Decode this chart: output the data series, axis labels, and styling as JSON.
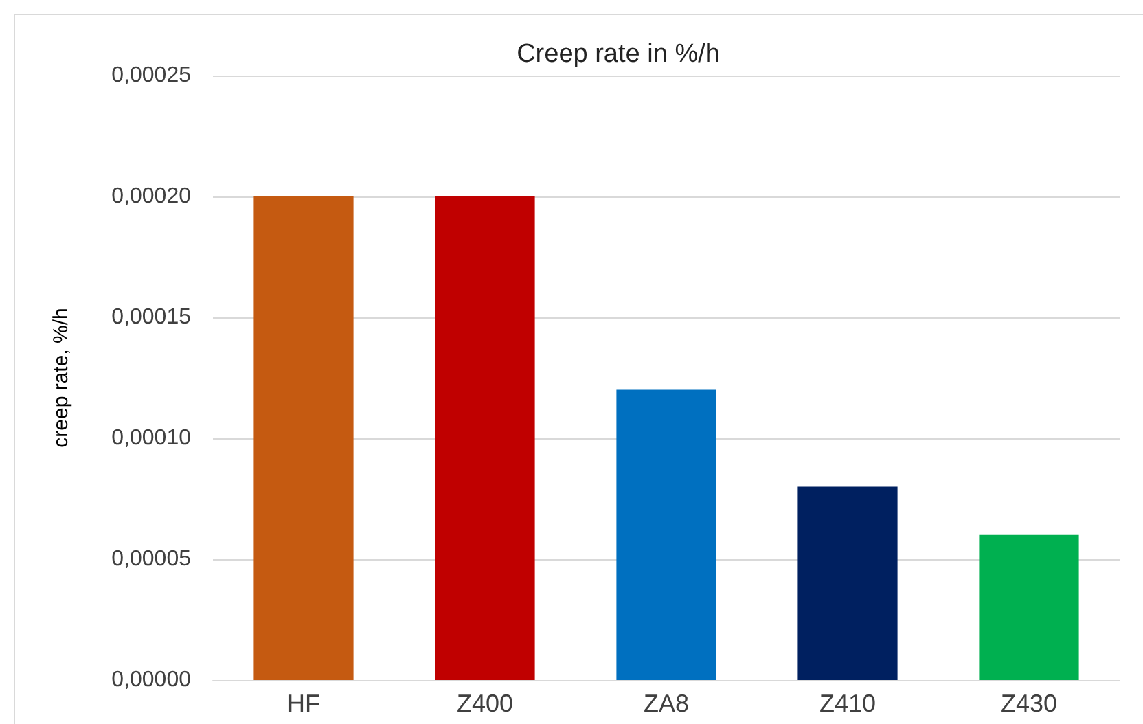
{
  "chart_data": {
    "type": "bar",
    "title": "Creep rate in %/h",
    "ylabel": "creep rate, %/h",
    "categories": [
      "HF",
      "Z400",
      "ZA8",
      "Z410",
      "Z430"
    ],
    "values": [
      0.0002,
      0.0002,
      0.00012,
      8e-05,
      6e-05
    ],
    "colors": [
      "#c55a11",
      "#c00000",
      "#0070c0",
      "#002060",
      "#00b050"
    ],
    "ylim": [
      0,
      0.00025
    ],
    "yticks": [
      {
        "value": 0,
        "label": "0,00000"
      },
      {
        "value": 5e-05,
        "label": "0,00005"
      },
      {
        "value": 0.0001,
        "label": "0,00010"
      },
      {
        "value": 0.00015,
        "label": "0,00015"
      },
      {
        "value": 0.0002,
        "label": "0,00020"
      },
      {
        "value": 0.00025,
        "label": "0,00025"
      }
    ],
    "grid": "y"
  }
}
